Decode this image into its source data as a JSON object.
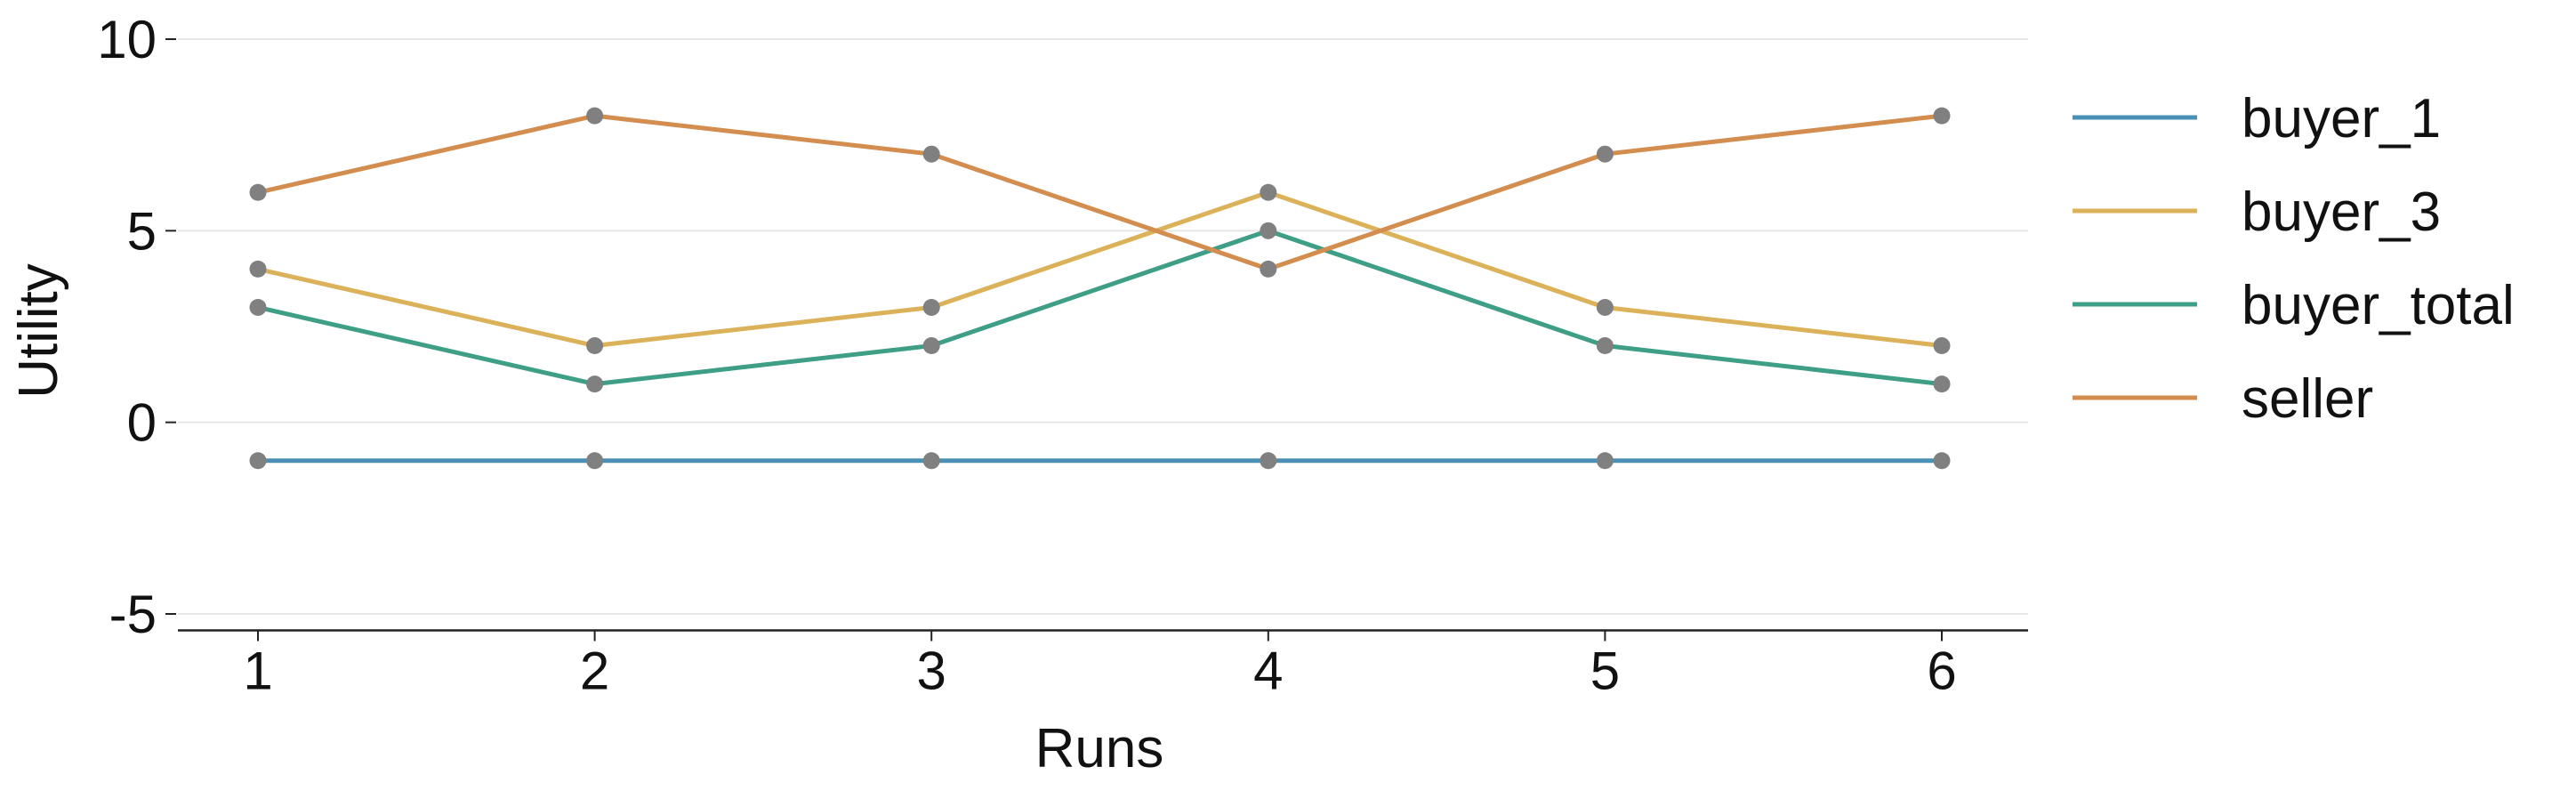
{
  "chart_data": {
    "type": "line",
    "xlabel": "Runs",
    "ylabel": "Utility",
    "x": [
      1,
      2,
      3,
      4,
      5,
      6
    ],
    "xticks": [
      "1",
      "2",
      "3",
      "4",
      "5",
      "6"
    ],
    "yticks": [
      "-5",
      "0",
      "5",
      "10"
    ],
    "ylim": [
      -5.5,
      10
    ],
    "grid": "horizontal",
    "legend_position": "right",
    "marker_color": "#808080",
    "series": [
      {
        "name": "buyer_1",
        "color": "#4a8fb5",
        "values": [
          -1,
          -1,
          -1,
          -1,
          -1,
          -1
        ]
      },
      {
        "name": "buyer_3",
        "color": "#dbb25a",
        "values": [
          4,
          2,
          3,
          6,
          3,
          2
        ]
      },
      {
        "name": "buyer_total",
        "color": "#3e9e86",
        "values": [
          3,
          1,
          2,
          5,
          2,
          1
        ]
      },
      {
        "name": "seller",
        "color": "#d28d4f",
        "values": [
          6,
          8,
          7,
          4,
          7,
          8
        ]
      }
    ]
  }
}
